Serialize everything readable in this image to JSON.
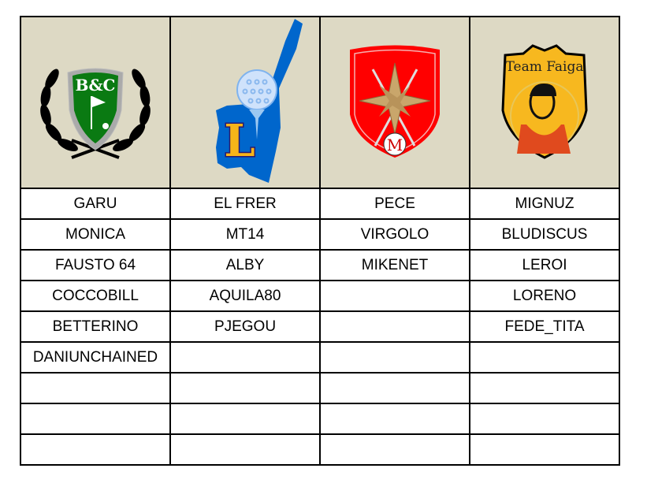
{
  "teams": [
    {
      "logo": {
        "name": "bc-golf-crest",
        "text": "B&C",
        "colors": {
          "shield": "#0a7a12",
          "wreath": "#000000"
        }
      },
      "members": [
        "GARU",
        "MONICA",
        "FAUSTO 64",
        "COCCOBILL",
        "BETTERINO",
        "DANIUNCHAINED",
        "",
        "",
        ""
      ]
    },
    {
      "logo": {
        "name": "lake-golf-ball-l",
        "text": "L",
        "colors": {
          "lake": "#0066cc",
          "letter": "#f7b519"
        }
      },
      "members": [
        "EL FRER",
        "MT14",
        "ALBY",
        "AQUILA80",
        "PJEGOU",
        "",
        "",
        "",
        ""
      ]
    },
    {
      "logo": {
        "name": "compass-star-shield",
        "text": "M",
        "colors": {
          "shield": "#ff0000",
          "star": "#c9a66b"
        }
      },
      "members": [
        "PECE",
        "VIRGOLO",
        "MIKENET",
        "",
        "",
        "",
        "",
        "",
        ""
      ]
    },
    {
      "logo": {
        "name": "team-faiga-badge",
        "text": "Team Faiga",
        "colors": {
          "badge": "#f7b81f"
        }
      },
      "members": [
        "MIGNUZ",
        "BLUDISCUS",
        "LEROI",
        "LORENO",
        "FEDE_TITA",
        "",
        "",
        "",
        ""
      ]
    }
  ]
}
